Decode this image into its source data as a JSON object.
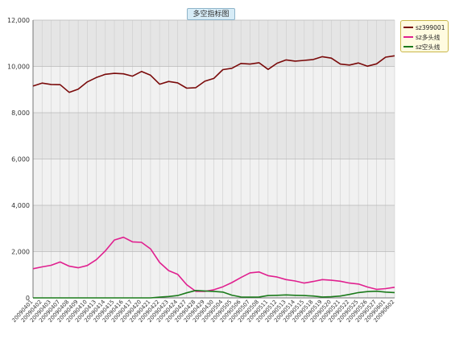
{
  "chart_data": {
    "type": "line",
    "title": "多空指标图",
    "xlabel": "",
    "ylabel": "",
    "ylim": [
      0,
      12000
    ],
    "yticks": [
      "0",
      "2,000",
      "4,000",
      "6,000",
      "8,000",
      "10,000",
      "12,000"
    ],
    "ytick_values": [
      0,
      2000,
      4000,
      6000,
      8000,
      10000,
      12000
    ],
    "grid": true,
    "legend_position": "top-right",
    "categories": [
      "20090401",
      "20090402",
      "20090403",
      "20090407",
      "20090408",
      "20090409",
      "20090410",
      "20090413",
      "20090414",
      "20090415",
      "20090416",
      "20090417",
      "20090420",
      "20090421",
      "20090422",
      "20090423",
      "20090424",
      "20090427",
      "20090428",
      "20090429",
      "20090430",
      "20090504",
      "20090505",
      "20090506",
      "20090507",
      "20090508",
      "20090511",
      "20090512",
      "20090513",
      "20090514",
      "20090515",
      "20090518",
      "20090519",
      "20090520",
      "20090521",
      "20090522",
      "20090525",
      "20090526",
      "20090527",
      "20090601",
      "20090602"
    ],
    "series": [
      {
        "name": "sz399001",
        "color": "#7a0a0a",
        "values": [
          9150,
          9280,
          9220,
          9210,
          8880,
          9020,
          9330,
          9520,
          9660,
          9700,
          9680,
          9580,
          9780,
          9620,
          9230,
          9350,
          9290,
          9060,
          9080,
          9360,
          9480,
          9860,
          9920,
          10130,
          10100,
          10160,
          9870,
          10140,
          10280,
          10230,
          10260,
          10300,
          10420,
          10360,
          10100,
          10060,
          10150,
          10010,
          10110,
          10400,
          10460
        ]
      },
      {
        "name": "sz多头线",
        "color": "#e0208f",
        "values": [
          1260,
          1340,
          1410,
          1550,
          1370,
          1300,
          1400,
          1650,
          2030,
          2500,
          2620,
          2420,
          2400,
          2120,
          1530,
          1180,
          1020,
          570,
          280,
          280,
          350,
          480,
          660,
          880,
          1080,
          1120,
          960,
          900,
          790,
          730,
          640,
          710,
          790,
          760,
          720,
          640,
          600,
          470,
          370,
          400,
          460
        ]
      },
      {
        "name": "sz空头线",
        "color": "#1b7a1b",
        "values": [
          0,
          0,
          0,
          0,
          0,
          0,
          0,
          0,
          0,
          0,
          0,
          0,
          0,
          0,
          30,
          60,
          100,
          220,
          320,
          300,
          280,
          250,
          120,
          40,
          30,
          40,
          100,
          110,
          130,
          110,
          100,
          80,
          40,
          50,
          80,
          150,
          230,
          270,
          290,
          250,
          230
        ]
      }
    ]
  }
}
